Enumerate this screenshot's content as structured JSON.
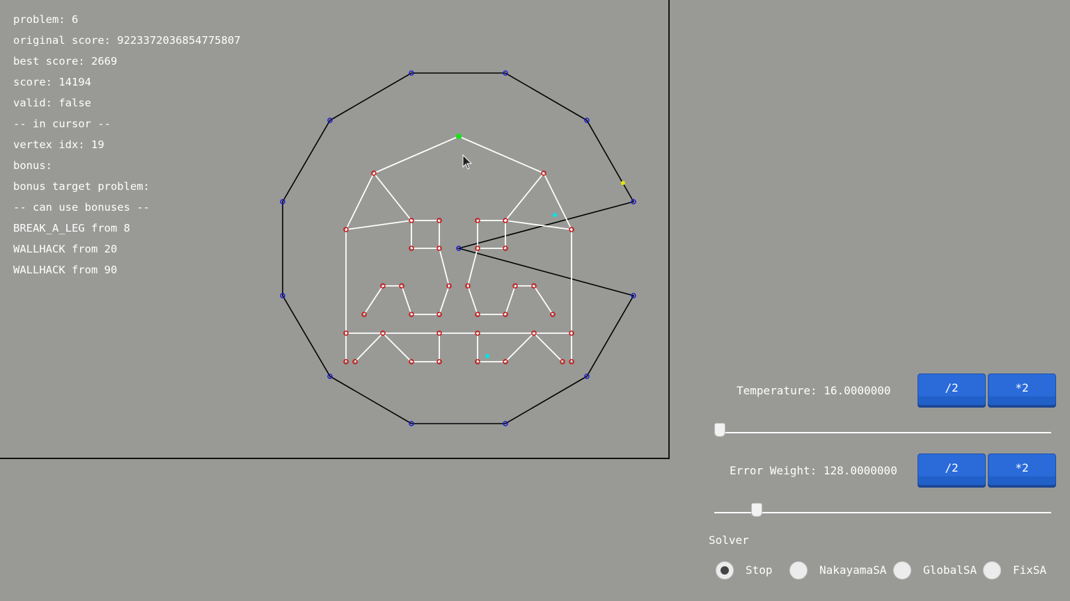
{
  "info": {
    "lines": [
      "problem: 6",
      "original score: 9223372036854775807",
      "best score: 2669",
      "score: 14194",
      "valid: false",
      "-- in cursor --",
      "vertex idx: 19",
      "bonus:",
      "bonus target problem:",
      "-- can use bonuses --",
      "BREAK_A_LEG from 8",
      "WALLHACK from 20",
      "WALLHACK from 90"
    ]
  },
  "controls": {
    "temperature": {
      "label": "Temperature: 16.0000000",
      "half_label": "/2",
      "double_label": "*2",
      "slider_fraction": 0.0
    },
    "error_weight": {
      "label": "Error Weight: 128.0000000",
      "half_label": "/2",
      "double_label": "*2",
      "slider_fraction": 0.127
    }
  },
  "solver": {
    "title": "Solver",
    "options": [
      "Stop",
      "NakayamaSA",
      "GlobalSA",
      "FixSA"
    ],
    "selected": "Stop"
  },
  "colors": {
    "background": "#999996",
    "hole_edge": "#000000",
    "hole_vertex": "#1a1ad0",
    "figure_edge": "#ffffff",
    "figure_vertex": "#cc1111",
    "cursor_vertex": "#22dd22",
    "bonus_cyan": "#00e5e5",
    "bonus_yellow": "#e5e500",
    "button": "#2a6bd9"
  }
}
